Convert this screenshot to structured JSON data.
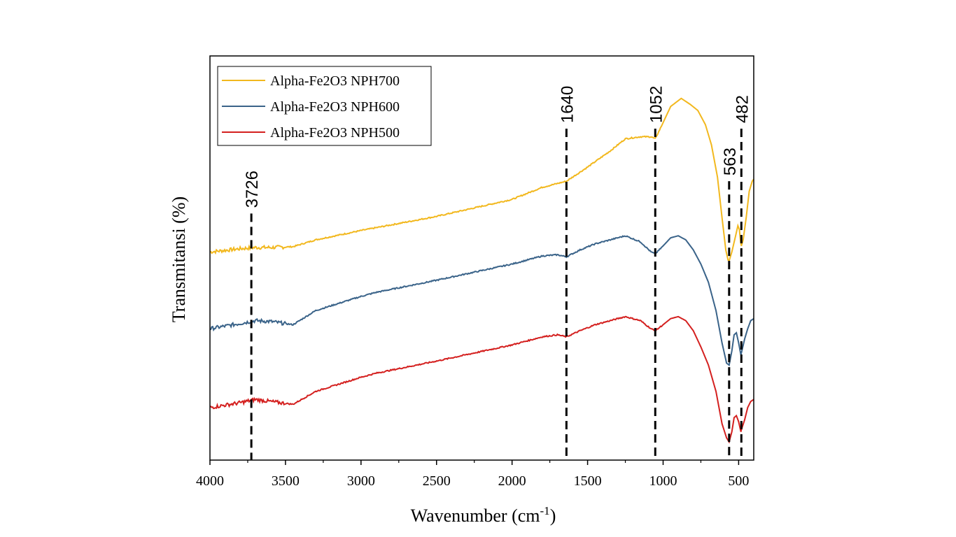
{
  "chart_data": {
    "type": "line",
    "title": "",
    "xlabel": "Wavenumber (cm",
    "xlabel_sup": "-1",
    "xlabel_close": ")",
    "ylabel": "Transmitansi (%)",
    "xlim": [
      4000,
      400
    ],
    "ylim": [
      0,
      100
    ],
    "x_ticks": [
      4000,
      3500,
      3000,
      2500,
      2000,
      1500,
      1000,
      500
    ],
    "legend_position": "top-left",
    "series": [
      {
        "name": "Alpha-Fe2O3 NPH700",
        "color": "#f2b81e",
        "points": [
          [
            4000,
            51.5
          ],
          [
            3800,
            52.3
          ],
          [
            3700,
            52.6
          ],
          [
            3600,
            52.6
          ],
          [
            3450,
            52.8
          ],
          [
            3300,
            54.5
          ],
          [
            3000,
            56.8
          ],
          [
            2500,
            60.3
          ],
          [
            2000,
            64.5
          ],
          [
            1800,
            67.5
          ],
          [
            1640,
            69.0
          ],
          [
            1500,
            72.5
          ],
          [
            1350,
            76.5
          ],
          [
            1250,
            79.5
          ],
          [
            1150,
            80.0
          ],
          [
            1080,
            80.0
          ],
          [
            1052,
            79.5
          ],
          [
            1000,
            83.5
          ],
          [
            950,
            87.5
          ],
          [
            880,
            89.5
          ],
          [
            820,
            88.0
          ],
          [
            770,
            86.5
          ],
          [
            720,
            83.0
          ],
          [
            680,
            78.0
          ],
          [
            640,
            70.0
          ],
          [
            610,
            60.0
          ],
          [
            585,
            52.0
          ],
          [
            570,
            49.5
          ],
          [
            563,
            49.3
          ],
          [
            545,
            51.5
          ],
          [
            520,
            55.5
          ],
          [
            505,
            58.0
          ],
          [
            495,
            57.0
          ],
          [
            487,
            54.0
          ],
          [
            482,
            53.0
          ],
          [
            470,
            54.5
          ],
          [
            450,
            60.0
          ],
          [
            430,
            66.5
          ],
          [
            410,
            69.0
          ],
          [
            400,
            69.5
          ]
        ]
      },
      {
        "name": "Alpha-Fe2O3 NPH600",
        "color": "#3a6389",
        "points": [
          [
            4000,
            32.5
          ],
          [
            3800,
            33.8
          ],
          [
            3700,
            34.5
          ],
          [
            3600,
            34.3
          ],
          [
            3450,
            33.5
          ],
          [
            3300,
            37.0
          ],
          [
            3000,
            40.5
          ],
          [
            2900,
            41.5
          ],
          [
            2500,
            44.5
          ],
          [
            2000,
            48.5
          ],
          [
            1800,
            50.5
          ],
          [
            1700,
            50.8
          ],
          [
            1640,
            50.3
          ],
          [
            1550,
            52.0
          ],
          [
            1450,
            53.5
          ],
          [
            1350,
            54.5
          ],
          [
            1250,
            55.5
          ],
          [
            1150,
            54.0
          ],
          [
            1080,
            51.5
          ],
          [
            1052,
            51.0
          ],
          [
            1000,
            53.0
          ],
          [
            950,
            55.0
          ],
          [
            900,
            55.5
          ],
          [
            850,
            54.5
          ],
          [
            800,
            52.0
          ],
          [
            750,
            48.5
          ],
          [
            700,
            44.0
          ],
          [
            650,
            37.0
          ],
          [
            610,
            29.0
          ],
          [
            580,
            24.0
          ],
          [
            563,
            23.5
          ],
          [
            545,
            27.0
          ],
          [
            530,
            31.0
          ],
          [
            515,
            31.5
          ],
          [
            500,
            29.0
          ],
          [
            485,
            26.0
          ],
          [
            482,
            26.5
          ],
          [
            460,
            30.0
          ],
          [
            440,
            32.5
          ],
          [
            420,
            34.5
          ],
          [
            400,
            35.0
          ]
        ]
      },
      {
        "name": "Alpha-Fe2O3 NPH500",
        "color": "#d4201f",
        "points": [
          [
            4000,
            13.0
          ],
          [
            3800,
            14.2
          ],
          [
            3700,
            15.0
          ],
          [
            3600,
            14.5
          ],
          [
            3450,
            13.8
          ],
          [
            3300,
            17.0
          ],
          [
            3000,
            20.5
          ],
          [
            2900,
            21.5
          ],
          [
            2500,
            24.5
          ],
          [
            2000,
            28.5
          ],
          [
            1800,
            30.5
          ],
          [
            1700,
            31.0
          ],
          [
            1640,
            30.5
          ],
          [
            1550,
            32.0
          ],
          [
            1450,
            33.5
          ],
          [
            1350,
            34.5
          ],
          [
            1250,
            35.5
          ],
          [
            1150,
            34.5
          ],
          [
            1080,
            32.5
          ],
          [
            1052,
            32.0
          ],
          [
            1000,
            33.5
          ],
          [
            950,
            35.0
          ],
          [
            900,
            35.5
          ],
          [
            850,
            34.5
          ],
          [
            800,
            32.0
          ],
          [
            750,
            28.0
          ],
          [
            700,
            23.5
          ],
          [
            650,
            17.0
          ],
          [
            610,
            9.0
          ],
          [
            580,
            5.5
          ],
          [
            563,
            4.5
          ],
          [
            545,
            7.0
          ],
          [
            530,
            10.5
          ],
          [
            515,
            11.0
          ],
          [
            500,
            9.5
          ],
          [
            485,
            7.0
          ],
          [
            482,
            7.5
          ],
          [
            460,
            10.0
          ],
          [
            440,
            13.0
          ],
          [
            420,
            14.5
          ],
          [
            400,
            15.0
          ]
        ]
      }
    ],
    "annotations": [
      {
        "label": "3726",
        "x": 3726,
        "top_value": 61
      },
      {
        "label": "1640",
        "x": 1640,
        "top_value": 82
      },
      {
        "label": "1052",
        "x": 1052,
        "top_value": 82
      },
      {
        "label": "563",
        "x": 563,
        "top_value": 69
      },
      {
        "label": "482",
        "x": 482,
        "top_value": 82
      }
    ]
  }
}
